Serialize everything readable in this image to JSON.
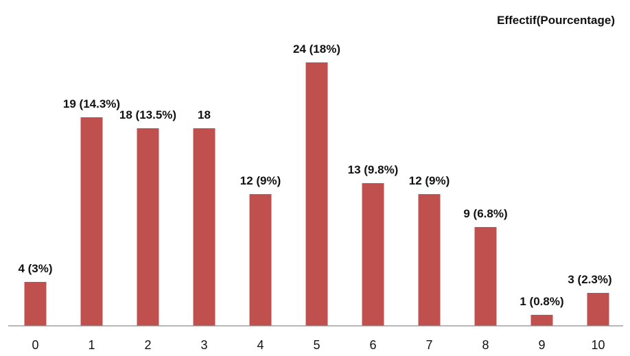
{
  "chart_data": {
    "type": "bar",
    "categories": [
      "0",
      "1",
      "2",
      "3",
      "4",
      "5",
      "6",
      "7",
      "8",
      "9",
      "10"
    ],
    "series": [
      {
        "name": "Effectif(Pourcentage)",
        "values": [
          4,
          19,
          18,
          18,
          12,
          24,
          13,
          12,
          9,
          1,
          3
        ],
        "color": "#c0504d"
      }
    ],
    "data_labels": [
      "4 (3%)",
      "19 (14.3%)",
      "18 (13.5%)",
      "18",
      "12 (9%)",
      "24 (18%)",
      "13 (9.8%)",
      "12 (9%)",
      "9 (6.8%)",
      "1 (0.8%)",
      "3 (2.3%)"
    ],
    "legend_position": "top-right",
    "ylim": [
      0,
      24
    ],
    "grid": false
  }
}
